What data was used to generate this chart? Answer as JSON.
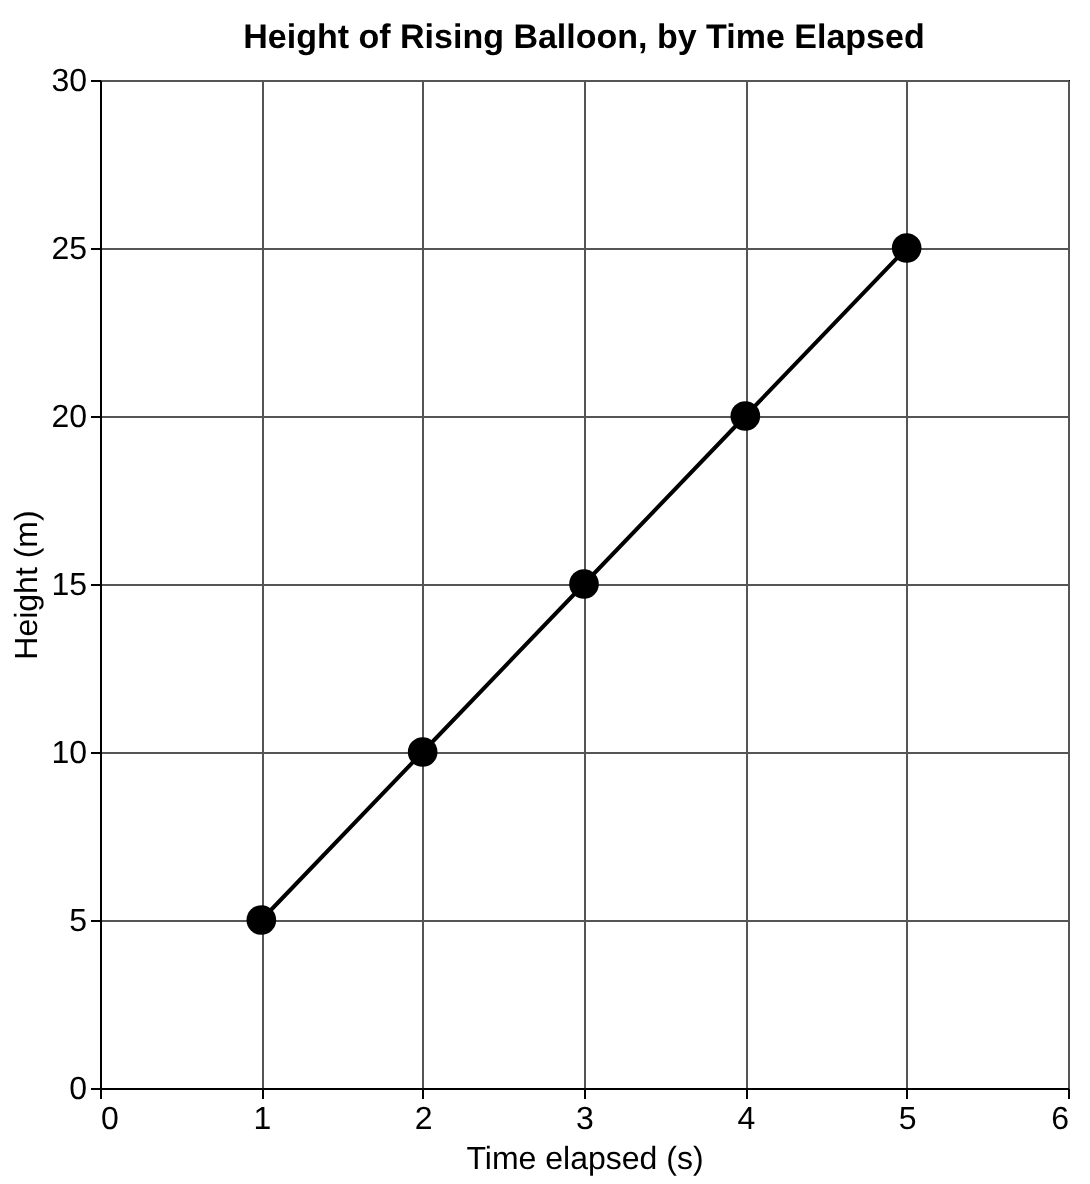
{
  "chart_data": {
    "type": "line",
    "title": "Height of Rising Balloon, by Time Elapsed",
    "xlabel": "Time elapsed (s)",
    "ylabel": "Height (m)",
    "x": [
      1,
      2,
      3,
      4,
      5
    ],
    "series": [
      {
        "color": "#000000",
        "values": [
          5,
          10,
          15,
          20,
          25
        ]
      }
    ],
    "xlim": [
      0,
      6
    ],
    "xticks": [
      0,
      1,
      2,
      3,
      4,
      5,
      6
    ],
    "ylim": [
      0,
      30
    ],
    "yticks": [
      0,
      5,
      10,
      15,
      20,
      25,
      30
    ],
    "grid": true,
    "marker": "circle",
    "line_style": "solid"
  }
}
